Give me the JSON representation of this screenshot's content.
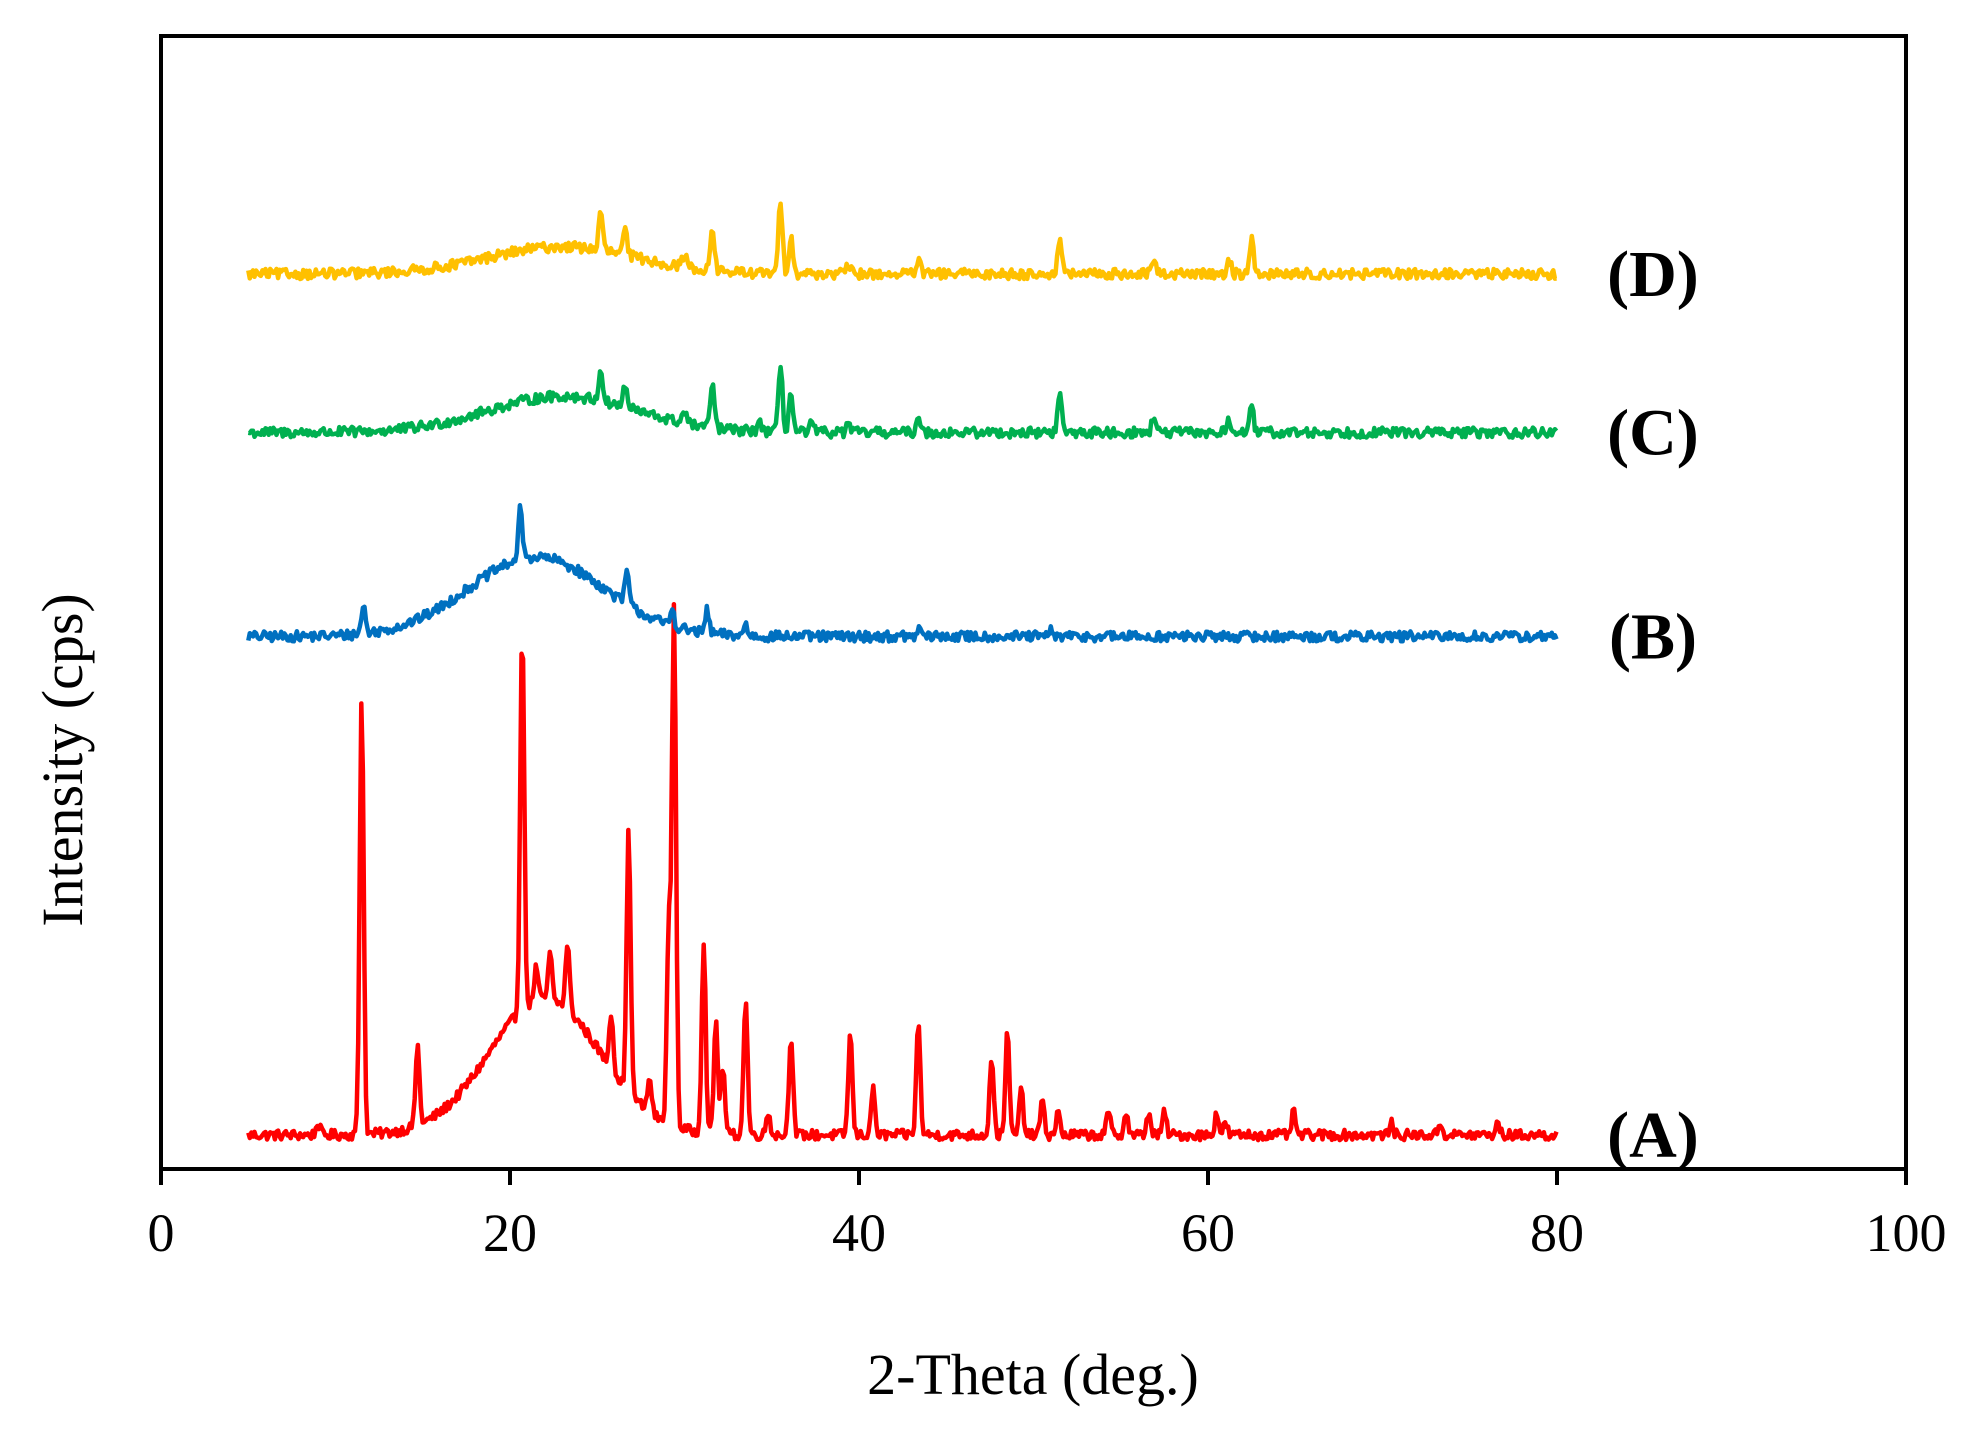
{
  "chart_data": {
    "type": "line",
    "title": "",
    "xlabel": "2-Theta (deg.)",
    "ylabel": "Intensity (cps)",
    "xlim": [
      0,
      100
    ],
    "ylim": [
      0,
      100
    ],
    "xticks": [
      0,
      20,
      40,
      60,
      80,
      100
    ],
    "yticks_shown": false,
    "grid": false,
    "x_range_data": [
      5,
      80
    ],
    "series": [
      {
        "name": "(A)",
        "color": "#ff0000",
        "baseline": 3,
        "hump": {
          "center": 22,
          "width": 4.5,
          "height": 12
        },
        "peaks": [
          [
            9,
            1
          ],
          [
            11.5,
            39
          ],
          [
            14.7,
            7
          ],
          [
            20.7,
            34
          ],
          [
            21.5,
            3
          ],
          [
            22.3,
            4
          ],
          [
            23.3,
            6
          ],
          [
            25.8,
            5
          ],
          [
            26.8,
            23
          ],
          [
            28,
            3
          ],
          [
            29.1,
            17
          ],
          [
            29.4,
            46
          ],
          [
            31.1,
            17
          ],
          [
            31.8,
            10
          ],
          [
            32.2,
            6
          ],
          [
            33.5,
            12
          ],
          [
            34.8,
            2
          ],
          [
            36.1,
            9
          ],
          [
            39.5,
            9
          ],
          [
            40.8,
            4
          ],
          [
            43.4,
            10
          ],
          [
            47.6,
            7
          ],
          [
            48.5,
            9
          ],
          [
            49.3,
            4
          ],
          [
            50.5,
            3
          ],
          [
            51.4,
            2
          ],
          [
            54.3,
            2
          ],
          [
            55.3,
            2
          ],
          [
            56.6,
            2
          ],
          [
            57.5,
            2
          ],
          [
            60.5,
            2
          ],
          [
            61,
            1
          ],
          [
            64.9,
            2
          ],
          [
            70.5,
            1
          ],
          [
            73.3,
            1
          ],
          [
            76.6,
            1
          ]
        ]
      },
      {
        "name": "(B)",
        "color": "#0070c0",
        "baseline": 47,
        "hump": {
          "center": 21.5,
          "width": 5.5,
          "height": 7
        },
        "peaks": [
          [
            11.6,
            2.5
          ],
          [
            20.6,
            4.5
          ],
          [
            26.7,
            3
          ],
          [
            29.3,
            1.5
          ],
          [
            31.3,
            2
          ],
          [
            33.5,
            1
          ],
          [
            43.5,
            0.7
          ],
          [
            51,
            0.5
          ]
        ]
      },
      {
        "name": "(C)",
        "color": "#00b050",
        "baseline": 65,
        "hump": {
          "center": 23,
          "width": 6,
          "height": 3.2
        },
        "peaks": [
          [
            25.2,
            2.8
          ],
          [
            26.6,
            2
          ],
          [
            30,
            1.2
          ],
          [
            31.6,
            4
          ],
          [
            34.3,
            1
          ],
          [
            35.5,
            6
          ],
          [
            36.1,
            3.5
          ],
          [
            37.3,
            0.8
          ],
          [
            39.4,
            0.8
          ],
          [
            43.4,
            1.5
          ],
          [
            51.5,
            3.5
          ],
          [
            56.9,
            1.5
          ],
          [
            61.2,
            1.2
          ],
          [
            62.5,
            2.2
          ]
        ]
      },
      {
        "name": "(D)",
        "color": "#ffc000",
        "baseline": 79,
        "hump": {
          "center": 23,
          "width": 6,
          "height": 2.4
        },
        "peaks": [
          [
            25.2,
            3.3
          ],
          [
            26.6,
            2.2
          ],
          [
            30,
            1.2
          ],
          [
            31.6,
            3.8
          ],
          [
            35.5,
            6.5
          ],
          [
            36.1,
            3.5
          ],
          [
            39.4,
            0.8
          ],
          [
            43.4,
            1.2
          ],
          [
            51.5,
            3.2
          ],
          [
            56.9,
            1.3
          ],
          [
            61.2,
            1.3
          ],
          [
            62.5,
            3
          ]
        ]
      }
    ]
  }
}
